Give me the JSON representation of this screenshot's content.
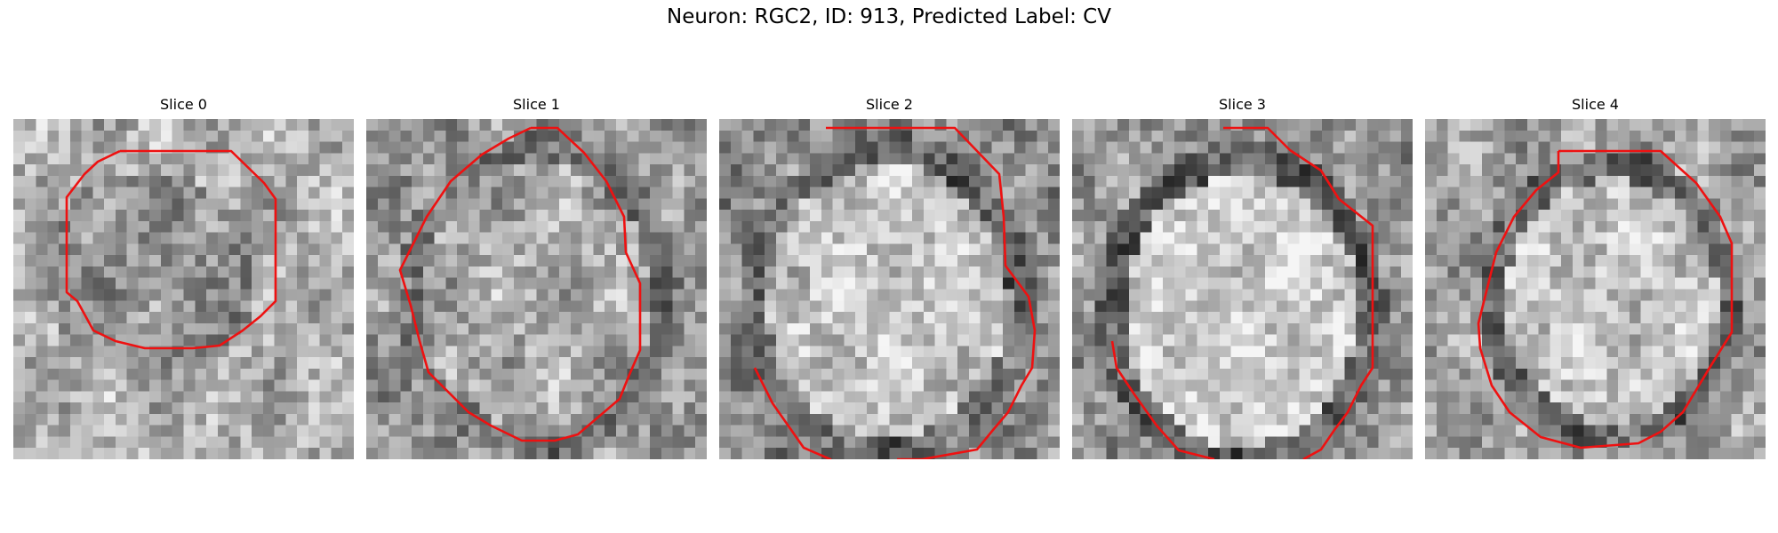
{
  "figure": {
    "title": "Neuron: RGC2, ID: 913, Predicted Label: CV"
  },
  "panels": [
    {
      "title": "Slice 0"
    },
    {
      "title": "Slice 1"
    },
    {
      "title": "Slice 2"
    },
    {
      "title": "Slice 3"
    },
    {
      "title": "Slice 4"
    }
  ],
  "colors": {
    "contour": "#ee1111",
    "background": "#ffffff"
  }
}
